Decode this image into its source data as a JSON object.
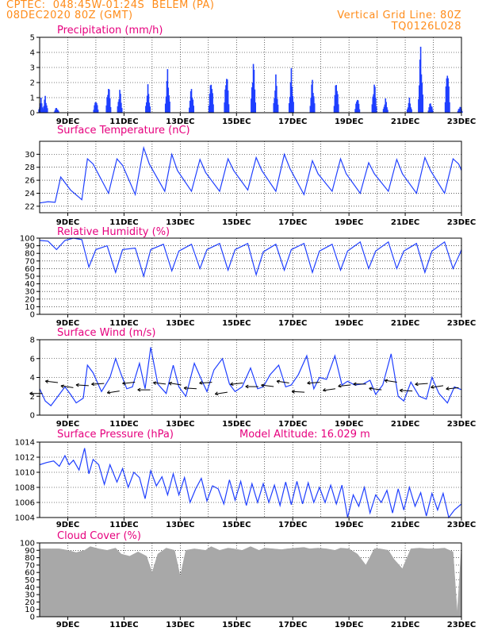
{
  "header": {
    "line1_left": "CPTEC:  048:45W-01:24S  BELEM (PA)",
    "line2_left": "08DEC2020 80Z (GMT)",
    "line1_right": "Vertical Grid Line: 80Z",
    "line2_right": "TQ0126L028"
  },
  "colors": {
    "header": "#ff8c1a",
    "panel_title": "#e6007e",
    "series": "#1f3fff",
    "cloud": "#a8a8a8",
    "arrow": "#000000"
  },
  "x_axis": {
    "start_day": 8.0,
    "end_day": 23.0,
    "tick_days": [
      9,
      11,
      13,
      15,
      17,
      19,
      21,
      23
    ],
    "tick_labels": [
      "9DEC",
      "11DEC",
      "13DEC",
      "15DEC",
      "17DEC",
      "19DEC",
      "21DEC",
      "23DEC"
    ]
  },
  "chart_data": [
    {
      "type": "bar",
      "title": "Precipitation (mm/h)",
      "ylim": [
        0,
        5
      ],
      "yticks": [
        "0",
        "1",
        "2",
        "3",
        "4",
        "5"
      ],
      "peaks": [
        {
          "day": 8.05,
          "value": 1.0
        },
        {
          "day": 8.2,
          "value": 1.2
        },
        {
          "day": 8.6,
          "value": 0.4
        },
        {
          "day": 10.0,
          "value": 1.0
        },
        {
          "day": 10.45,
          "value": 2.1
        },
        {
          "day": 10.85,
          "value": 1.7
        },
        {
          "day": 11.85,
          "value": 1.9
        },
        {
          "day": 12.55,
          "value": 3.0
        },
        {
          "day": 13.4,
          "value": 1.9
        },
        {
          "day": 14.1,
          "value": 2.6
        },
        {
          "day": 14.65,
          "value": 3.1
        },
        {
          "day": 15.6,
          "value": 3.8
        },
        {
          "day": 16.4,
          "value": 2.6
        },
        {
          "day": 16.95,
          "value": 3.0
        },
        {
          "day": 17.7,
          "value": 2.5
        },
        {
          "day": 18.55,
          "value": 2.5
        },
        {
          "day": 19.3,
          "value": 1.2
        },
        {
          "day": 19.9,
          "value": 2.3
        },
        {
          "day": 20.3,
          "value": 1.0
        },
        {
          "day": 21.15,
          "value": 1.0
        },
        {
          "day": 21.55,
          "value": 4.8
        },
        {
          "day": 21.9,
          "value": 0.8
        },
        {
          "day": 22.5,
          "value": 3.5
        },
        {
          "day": 22.95,
          "value": 0.5
        }
      ]
    },
    {
      "type": "line",
      "title": "Surface Temperature (nC)",
      "ylim": [
        21,
        32
      ],
      "yticks": [
        "22",
        "24",
        "26",
        "28",
        "30"
      ],
      "ytick_values": [
        22,
        24,
        26,
        28,
        30
      ],
      "x": [
        8.0,
        8.3,
        8.55,
        8.75,
        9.1,
        9.5,
        9.7,
        9.9,
        10.45,
        10.75,
        10.95,
        11.4,
        11.7,
        11.9,
        12.45,
        12.7,
        12.9,
        13.4,
        13.7,
        13.9,
        14.4,
        14.7,
        14.9,
        15.4,
        15.7,
        15.9,
        16.4,
        16.7,
        16.9,
        17.4,
        17.7,
        17.9,
        18.4,
        18.7,
        18.9,
        19.4,
        19.7,
        19.9,
        20.4,
        20.7,
        20.9,
        21.4,
        21.7,
        21.9,
        22.4,
        22.7,
        22.9,
        23.0
      ],
      "y": [
        22.5,
        22.7,
        22.6,
        26.5,
        24.5,
        23.0,
        29.3,
        28.5,
        24.0,
        29.3,
        28.3,
        23.8,
        31.0,
        28.5,
        24.3,
        30.0,
        27.5,
        24.3,
        29.2,
        27.2,
        24.3,
        29.3,
        27.5,
        24.5,
        29.5,
        27.5,
        24.3,
        30.0,
        27.8,
        23.8,
        29.0,
        27.0,
        24.3,
        29.3,
        27.0,
        24.0,
        28.7,
        27.0,
        24.3,
        29.2,
        27.0,
        24.0,
        29.5,
        27.5,
        24.0,
        29.3,
        28.5,
        27.5
      ]
    },
    {
      "type": "line",
      "title": "Relative Humidity (%)",
      "ylim": [
        0,
        100
      ],
      "yticks": [
        "0",
        "10",
        "20",
        "30",
        "40",
        "50",
        "60",
        "70",
        "80",
        "90",
        "100"
      ],
      "ytick_values": [
        0,
        10,
        20,
        30,
        40,
        50,
        60,
        70,
        80,
        90,
        100
      ],
      "x": [
        8.0,
        8.3,
        8.6,
        8.9,
        9.2,
        9.5,
        9.75,
        10.0,
        10.4,
        10.7,
        10.95,
        11.4,
        11.7,
        11.95,
        12.4,
        12.7,
        12.95,
        13.4,
        13.7,
        13.95,
        14.4,
        14.7,
        14.95,
        15.4,
        15.7,
        15.95,
        16.4,
        16.7,
        16.95,
        17.4,
        17.7,
        17.95,
        18.4,
        18.7,
        18.95,
        19.4,
        19.7,
        19.95,
        20.4,
        20.7,
        20.95,
        21.4,
        21.7,
        21.95,
        22.4,
        22.7,
        22.95,
        23.0
      ],
      "y": [
        97,
        96,
        85,
        97,
        100,
        98,
        62,
        85,
        90,
        55,
        85,
        87,
        50,
        85,
        92,
        57,
        83,
        92,
        60,
        85,
        93,
        58,
        85,
        93,
        52,
        82,
        92,
        58,
        85,
        93,
        55,
        83,
        92,
        58,
        83,
        95,
        60,
        83,
        95,
        60,
        83,
        93,
        55,
        83,
        95,
        60,
        80,
        85
      ]
    },
    {
      "type": "line",
      "title": "Surface Wind (m/s)",
      "ylim": [
        0,
        8
      ],
      "yticks": [
        "0",
        "2",
        "4",
        "6",
        "8"
      ],
      "ytick_values": [
        0,
        2,
        4,
        6,
        8
      ],
      "x": [
        8.0,
        8.2,
        8.4,
        8.6,
        8.9,
        9.1,
        9.3,
        9.55,
        9.7,
        9.9,
        10.2,
        10.5,
        10.7,
        10.9,
        11.1,
        11.3,
        11.55,
        11.75,
        11.95,
        12.2,
        12.5,
        12.75,
        12.95,
        13.2,
        13.5,
        13.75,
        13.95,
        14.2,
        14.5,
        14.75,
        14.95,
        15.2,
        15.5,
        15.75,
        15.95,
        16.2,
        16.5,
        16.75,
        16.95,
        17.2,
        17.5,
        17.75,
        17.95,
        18.2,
        18.5,
        18.75,
        18.95,
        19.2,
        19.5,
        19.75,
        19.95,
        20.2,
        20.5,
        20.75,
        20.95,
        21.2,
        21.5,
        21.75,
        21.95,
        22.2,
        22.5,
        22.75,
        23.0
      ],
      "y": [
        2.8,
        1.5,
        1.0,
        1.8,
        3.0,
        2.2,
        1.3,
        1.8,
        5.3,
        4.5,
        2.5,
        4.0,
        6.0,
        4.3,
        2.8,
        3.0,
        5.5,
        2.8,
        7.2,
        3.3,
        2.3,
        5.3,
        3.0,
        2.0,
        5.5,
        3.8,
        2.5,
        4.8,
        6.0,
        3.3,
        2.5,
        3.0,
        5.0,
        2.8,
        3.0,
        4.3,
        5.3,
        3.0,
        3.2,
        4.3,
        6.3,
        2.8,
        4.0,
        3.8,
        6.3,
        3.2,
        3.6,
        3.2,
        3.3,
        3.7,
        2.2,
        3.2,
        6.5,
        2.0,
        1.5,
        3.5,
        2.0,
        1.7,
        4.0,
        2.3,
        1.3,
        3.0,
        2.7
      ]
    },
    {
      "type": "line",
      "title": "Surface Pressure (hPa)",
      "annotation": "Model Altitude: 16.029 m",
      "ylim": [
        1004,
        1014
      ],
      "yticks": [
        "1004",
        "1006",
        "1008",
        "1010",
        "1012",
        "1014"
      ],
      "ytick_values": [
        1004,
        1006,
        1008,
        1010,
        1012,
        1014
      ],
      "x": [
        8.0,
        8.25,
        8.5,
        8.7,
        8.9,
        9.05,
        9.2,
        9.4,
        9.6,
        9.75,
        9.9,
        10.1,
        10.3,
        10.5,
        10.75,
        10.95,
        11.15,
        11.35,
        11.55,
        11.75,
        11.95,
        12.15,
        12.35,
        12.55,
        12.75,
        12.95,
        13.15,
        13.35,
        13.55,
        13.75,
        13.95,
        14.15,
        14.35,
        14.55,
        14.75,
        14.95,
        15.15,
        15.35,
        15.55,
        15.75,
        15.95,
        16.15,
        16.35,
        16.55,
        16.75,
        16.95,
        17.15,
        17.35,
        17.55,
        17.75,
        17.95,
        18.15,
        18.35,
        18.55,
        18.75,
        18.95,
        19.15,
        19.35,
        19.55,
        19.75,
        19.95,
        20.15,
        20.35,
        20.55,
        20.75,
        20.95,
        21.15,
        21.35,
        21.55,
        21.75,
        21.95,
        22.15,
        22.35,
        22.55,
        22.75,
        23.0
      ],
      "y": [
        1011.0,
        1011.3,
        1011.5,
        1010.8,
        1012.2,
        1011.0,
        1011.6,
        1010.3,
        1013.2,
        1009.8,
        1011.7,
        1011.0,
        1008.4,
        1011.0,
        1008.7,
        1010.5,
        1008.0,
        1010.0,
        1009.3,
        1006.5,
        1010.2,
        1008.2,
        1009.4,
        1007.0,
        1009.8,
        1007.0,
        1009.3,
        1006.0,
        1007.8,
        1009.2,
        1006.2,
        1008.2,
        1007.8,
        1005.8,
        1009.0,
        1006.3,
        1008.8,
        1005.6,
        1008.5,
        1006.0,
        1008.5,
        1006.0,
        1008.3,
        1005.6,
        1008.7,
        1005.7,
        1008.8,
        1005.8,
        1008.6,
        1006.0,
        1008.0,
        1006.0,
        1008.3,
        1005.8,
        1008.3,
        1004.0,
        1007.0,
        1005.5,
        1008.0,
        1004.6,
        1007.0,
        1006.0,
        1007.6,
        1004.6,
        1007.8,
        1005.0,
        1008.0,
        1005.5,
        1007.3,
        1004.2,
        1007.2,
        1005.0,
        1007.2,
        1004.0,
        1005.0,
        1005.8
      ]
    },
    {
      "type": "area",
      "title": "Cloud Cover (%)",
      "ylim": [
        0,
        100
      ],
      "yticks": [
        "0",
        "10",
        "20",
        "30",
        "40",
        "50",
        "60",
        "70",
        "80",
        "90",
        "100"
      ],
      "ytick_values": [
        0,
        10,
        20,
        30,
        40,
        50,
        60,
        70,
        80,
        90,
        100
      ],
      "x": [
        8.0,
        8.4,
        8.7,
        9.0,
        9.3,
        9.6,
        9.8,
        10.1,
        10.4,
        10.7,
        10.9,
        11.2,
        11.5,
        11.8,
        12.0,
        12.2,
        12.5,
        12.8,
        13.0,
        13.2,
        13.5,
        13.9,
        14.1,
        14.4,
        14.7,
        14.9,
        15.2,
        15.5,
        15.8,
        16.0,
        16.3,
        16.6,
        16.8,
        17.1,
        17.4,
        17.6,
        17.9,
        18.2,
        18.5,
        18.7,
        19.0,
        19.3,
        19.6,
        19.9,
        20.1,
        20.4,
        20.6,
        20.9,
        21.2,
        21.5,
        21.8,
        22.1,
        22.4,
        22.7,
        22.85,
        23.0
      ],
      "y": [
        92,
        92,
        92,
        90,
        87,
        90,
        95,
        92,
        90,
        93,
        85,
        82,
        88,
        82,
        60,
        85,
        93,
        90,
        55,
        90,
        92,
        90,
        95,
        90,
        93,
        92,
        90,
        95,
        90,
        93,
        92,
        91,
        92,
        93,
        94,
        92,
        93,
        92,
        90,
        93,
        92,
        85,
        70,
        92,
        92,
        90,
        78,
        65,
        92,
        93,
        92,
        92,
        93,
        88,
        5,
        95
      ]
    }
  ]
}
